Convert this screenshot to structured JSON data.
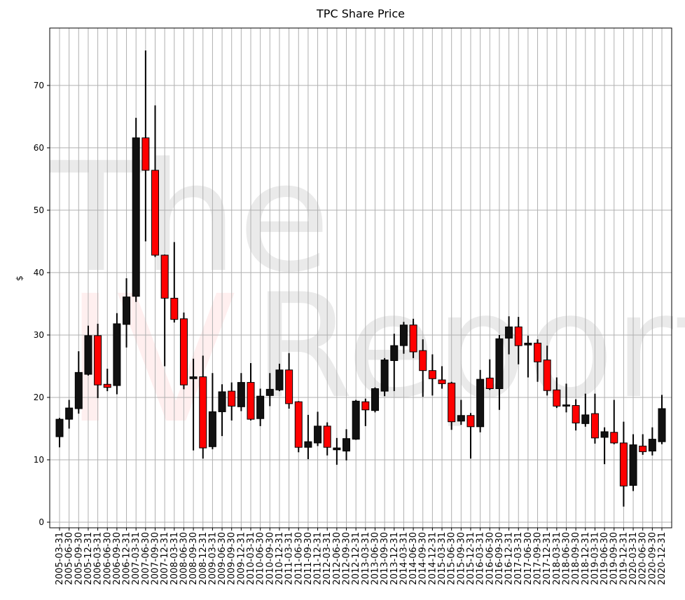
{
  "chart_data": {
    "type": "candlestick",
    "title": "TPC Share Price",
    "ylabel": "$",
    "watermark": [
      "The",
      "IV",
      "Report"
    ],
    "categories": [
      "2005-03-31",
      "2005-06-30",
      "2005-09-30",
      "2005-12-31",
      "2006-03-31",
      "2006-06-30",
      "2006-09-30",
      "2006-12-31",
      "2007-03-31",
      "2007-06-30",
      "2007-09-30",
      "2007-12-31",
      "2008-03-31",
      "2008-06-30",
      "2008-09-30",
      "2008-12-31",
      "2009-03-31",
      "2009-06-30",
      "2009-09-30",
      "2009-12-31",
      "2010-03-31",
      "2010-06-30",
      "2010-09-30",
      "2010-12-31",
      "2011-03-31",
      "2011-06-30",
      "2011-09-30",
      "2011-12-31",
      "2012-03-31",
      "2012-06-30",
      "2012-09-30",
      "2012-12-31",
      "2013-03-31",
      "2013-06-30",
      "2013-09-30",
      "2013-12-31",
      "2014-03-31",
      "2014-06-30",
      "2014-09-30",
      "2014-12-31",
      "2015-03-31",
      "2015-06-30",
      "2015-09-30",
      "2015-12-31",
      "2016-03-31",
      "2016-06-30",
      "2016-09-30",
      "2016-12-31",
      "2017-03-31",
      "2017-06-30",
      "2017-09-30",
      "2017-12-31",
      "2018-03-31",
      "2018-06-30",
      "2018-09-30",
      "2018-12-31",
      "2019-03-31",
      "2019-06-30",
      "2019-09-30",
      "2019-12-31",
      "2020-03-31",
      "2020-06-30",
      "2020-09-30",
      "2020-12-31"
    ],
    "open": [
      13.7,
      16.5,
      18.2,
      23.7,
      29.9,
      22.1,
      21.9,
      31.7,
      36.2,
      61.6,
      56.4,
      42.8,
      35.9,
      32.6,
      23.0,
      23.3,
      12.1,
      17.7,
      21.0,
      18.5,
      22.4,
      16.6,
      20.3,
      21.2,
      24.4,
      19.3,
      12.0,
      12.7,
      15.4,
      11.6,
      11.4,
      13.3,
      19.3,
      17.9,
      21.0,
      25.9,
      28.3,
      31.6,
      27.5,
      24.3,
      22.8,
      22.3,
      16.2,
      17.1,
      15.3,
      23.1,
      21.4,
      29.5,
      31.3,
      28.4,
      28.7,
      26.0,
      21.2,
      18.6,
      18.7,
      15.8,
      17.4,
      13.6,
      14.4,
      12.7,
      5.9,
      12.2,
      11.4,
      12.9
    ],
    "high": [
      16.7,
      19.6,
      27.4,
      31.5,
      31.8,
      24.6,
      33.5,
      39.1,
      64.8,
      75.6,
      66.8,
      42.9,
      44.9,
      33.6,
      26.2,
      26.7,
      23.9,
      22.1,
      22.4,
      23.9,
      25.5,
      21.4,
      23.9,
      25.4,
      27.1,
      19.4,
      17.2,
      17.7,
      16.0,
      13.5,
      14.9,
      19.6,
      19.8,
      21.6,
      26.3,
      30.2,
      32.1,
      32.6,
      29.3,
      26.9,
      25.0,
      22.5,
      19.6,
      17.5,
      24.4,
      26.1,
      30.0,
      33.0,
      32.9,
      29.9,
      29.3,
      28.3,
      23.2,
      22.2,
      19.7,
      20.6,
      20.6,
      15.2,
      19.6,
      16.1,
      14.1,
      14.1,
      15.2,
      20.4
    ],
    "low": [
      12.0,
      15.0,
      17.4,
      23.5,
      19.9,
      21.0,
      20.5,
      28.0,
      35.3,
      45.0,
      42.5,
      25.0,
      32.0,
      21.3,
      11.5,
      10.2,
      11.7,
      13.8,
      16.3,
      17.8,
      16.3,
      15.4,
      18.6,
      21.0,
      18.2,
      11.2,
      10.1,
      12.2,
      10.7,
      9.2,
      9.9,
      13.2,
      15.4,
      17.6,
      20.2,
      21.0,
      27.0,
      26.3,
      20.1,
      20.3,
      21.4,
      14.8,
      15.6,
      10.2,
      14.4,
      21.2,
      18.0,
      26.9,
      25.3,
      23.2,
      22.5,
      20.3,
      18.3,
      17.6,
      14.7,
      15.3,
      12.6,
      9.3,
      12.5,
      2.5,
      5.0,
      10.8,
      10.7,
      12.5
    ],
    "close": [
      16.5,
      18.3,
      24.0,
      29.9,
      22.0,
      21.6,
      31.8,
      36.1,
      61.6,
      56.4,
      42.8,
      35.9,
      32.5,
      22.0,
      23.3,
      11.9,
      17.7,
      20.9,
      18.6,
      22.4,
      16.5,
      20.2,
      21.3,
      24.4,
      19.0,
      12.0,
      12.9,
      15.4,
      12.0,
      11.9,
      13.4,
      19.4,
      18.0,
      21.4,
      26.0,
      28.3,
      31.6,
      27.3,
      24.3,
      23.0,
      22.2,
      16.1,
      17.1,
      15.3,
      22.9,
      21.4,
      29.4,
      31.3,
      28.3,
      28.7,
      25.7,
      21.1,
      18.6,
      18.8,
      15.9,
      17.2,
      13.5,
      14.5,
      12.7,
      5.8,
      12.4,
      11.3,
      13.3,
      18.2
    ],
    "up_color": "#111111",
    "down_color": "#ff0000",
    "ylim": [
      -0.9,
      79.2
    ],
    "yticks": [
      0,
      10,
      20,
      30,
      40,
      50,
      60,
      70
    ],
    "grid": true
  }
}
